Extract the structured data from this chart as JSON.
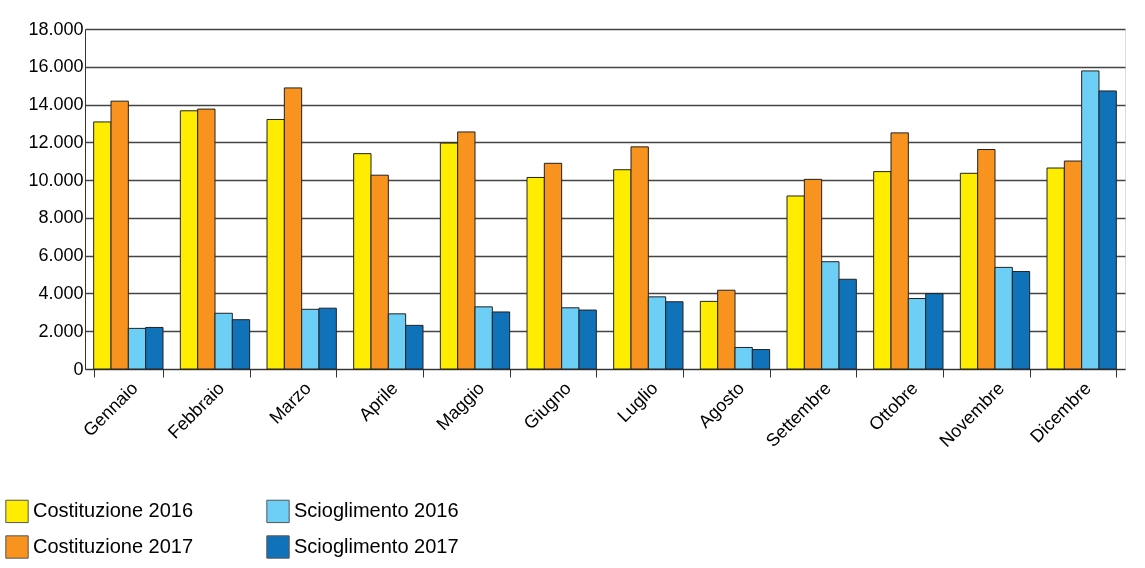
{
  "chart_data": {
    "type": "bar",
    "categories": [
      "Gennaio",
      "Febbraio",
      "Marzo",
      "Aprile",
      "Maggio",
      "Giugno",
      "Luglio",
      "Agosto",
      "Settembre",
      "Ottobre",
      "Novembre",
      "Dicembre"
    ],
    "series": [
      {
        "name": "Costituzione 2016",
        "color": "#ffed00",
        "values": [
          13080,
          13670,
          13210,
          11400,
          11960,
          10140,
          10550,
          3580,
          9160,
          10450,
          10360,
          10640
        ]
      },
      {
        "name": "Costituzione 2017",
        "color": "#f7931e",
        "values": [
          14180,
          13760,
          14880,
          10260,
          12550,
          10890,
          11760,
          4170,
          10040,
          12500,
          11620,
          11010
        ]
      },
      {
        "name": "Scioglimento 2016",
        "color": "#6dcff6",
        "values": [
          2150,
          2950,
          3160,
          2920,
          3290,
          3240,
          3820,
          1140,
          5680,
          3730,
          5380,
          15780
        ]
      },
      {
        "name": "Scioglimento 2017",
        "color": "#1073ba",
        "values": [
          2200,
          2610,
          3220,
          2310,
          3020,
          3120,
          3560,
          1030,
          4750,
          3990,
          5160,
          14720
        ]
      }
    ],
    "ylim": [
      0,
      18000
    ],
    "yticks": [
      {
        "value": 0,
        "label": "0"
      },
      {
        "value": 2000,
        "label": "2.000"
      },
      {
        "value": 4000,
        "label": "4.000"
      },
      {
        "value": 6000,
        "label": "6.000"
      },
      {
        "value": 8000,
        "label": "8.000"
      },
      {
        "value": 10000,
        "label": "10.000"
      },
      {
        "value": 12000,
        "label": "12.000"
      },
      {
        "value": 14000,
        "label": "14.000"
      },
      {
        "value": 16000,
        "label": "16.000"
      },
      {
        "value": 18000,
        "label": "18.000"
      }
    ],
    "grid": "y",
    "legend": "bottom left"
  }
}
